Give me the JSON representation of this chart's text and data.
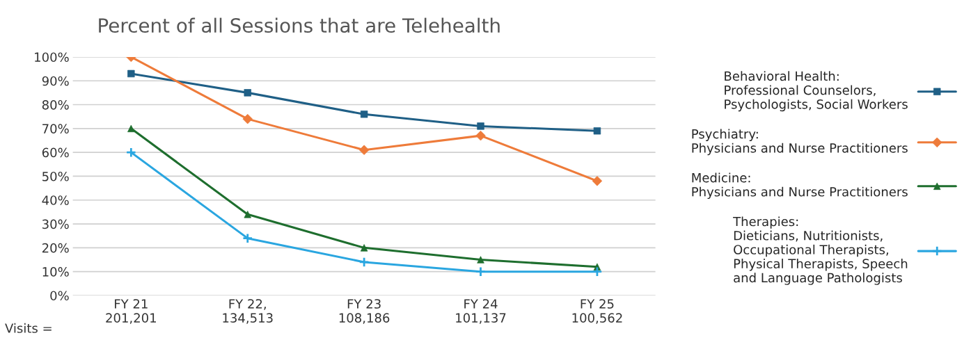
{
  "chart_data": {
    "type": "line",
    "title": "Percent of all Sessions that are Telehealth",
    "categories": [
      "FY 21\n201,201",
      "FY 22,\n134,513",
      "FY 23\n108,186",
      "FY 24\n101,137",
      "FY 25\n100,562"
    ],
    "series": [
      {
        "name": "Behavioral Health:\nProfessional Counselors,\nPsychologists, Social Workers",
        "color": "#1f5f86",
        "marker": "square",
        "values": [
          93,
          85,
          76,
          71,
          69
        ]
      },
      {
        "name": "Psychiatry:\nPhysicians and Nurse Practitioners",
        "color": "#ee7b3a",
        "marker": "diamond",
        "values": [
          100,
          74,
          61,
          67,
          48
        ]
      },
      {
        "name": "Medicine:\nPhysicians and Nurse Practitioners",
        "color": "#1e6e2e",
        "marker": "triangle",
        "values": [
          70,
          34,
          20,
          15,
          12
        ]
      },
      {
        "name": "Therapies:\nDieticians, Nutritionists,\nOccupational Therapists,\nPhysical Therapists, Speech\nand Language Pathologists",
        "color": "#2aa6e0",
        "marker": "cross",
        "values": [
          60,
          24,
          14,
          10,
          10
        ]
      }
    ],
    "ylim": [
      0,
      100
    ],
    "yticks": [
      {
        "value": 0,
        "label": "0%"
      },
      {
        "value": 10,
        "label": "10%"
      },
      {
        "value": 20,
        "label": "20%"
      },
      {
        "value": 30,
        "label": "30%"
      },
      {
        "value": 40,
        "label": "40%"
      },
      {
        "value": 50,
        "label": "50%"
      },
      {
        "value": 60,
        "label": "60%"
      },
      {
        "value": 70,
        "label": "70%"
      },
      {
        "value": 80,
        "label": "80%"
      },
      {
        "value": 90,
        "label": "90%"
      },
      {
        "value": 100,
        "label": "100%"
      }
    ],
    "annotations": [
      "Visits ="
    ],
    "grid": "y",
    "legend": "right"
  }
}
